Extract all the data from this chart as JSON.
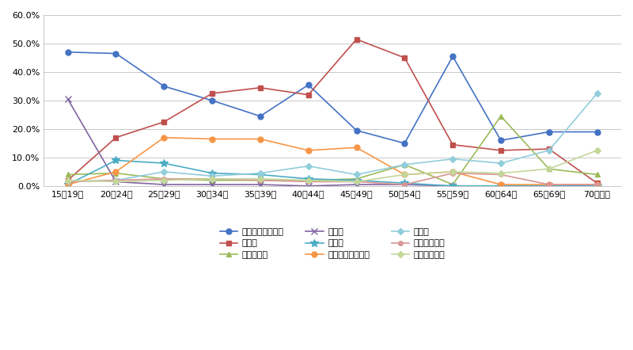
{
  "categories": [
    "15～19歳",
    "20～24歳",
    "25～29歳",
    "30～34歳",
    "35～39歳",
    "40～44歳",
    "45～49歳",
    "50～54歳",
    "55～59歳",
    "60～64歳",
    "65～69歳",
    "70歳以上"
  ],
  "series": [
    {
      "name": "就職・転職・転業",
      "color": "#4472C4",
      "marker": "o",
      "markersize": 5,
      "values": [
        47.0,
        46.5,
        35.0,
        30.0,
        24.5,
        35.5,
        19.5,
        15.0,
        45.5,
        16.0,
        19.0,
        19.0
      ]
    },
    {
      "name": "転　勧",
      "color": "#C0504D",
      "marker": "s",
      "markersize": 5,
      "values": [
        2.0,
        17.0,
        22.5,
        32.5,
        34.5,
        32.0,
        51.5,
        45.0,
        14.5,
        12.5,
        13.0,
        1.0
      ]
    },
    {
      "name": "退職・廃業",
      "color": "#9BBB59",
      "marker": "^",
      "markersize": 5,
      "values": [
        4.0,
        4.5,
        2.5,
        2.0,
        2.0,
        2.0,
        2.5,
        7.5,
        0.5,
        24.5,
        6.0,
        4.0
      ]
    },
    {
      "name": "就　学",
      "color": "#8064A2",
      "marker": "x",
      "markersize": 6,
      "values": [
        30.5,
        1.5,
        0.5,
        0.5,
        0.5,
        0.0,
        0.5,
        0.5,
        0.0,
        0.0,
        0.0,
        0.0
      ]
    },
    {
      "name": "卒　業",
      "color": "#4BACC6",
      "marker": "*",
      "markersize": 7,
      "values": [
        0.5,
        9.0,
        8.0,
        4.5,
        4.0,
        2.5,
        2.0,
        1.0,
        0.0,
        0.0,
        0.0,
        0.0
      ]
    },
    {
      "name": "結婚・離婚・縁組",
      "color": "#F79646",
      "marker": "o",
      "markersize": 5,
      "values": [
        0.5,
        5.0,
        17.0,
        16.5,
        16.5,
        12.5,
        13.5,
        4.0,
        5.0,
        0.5,
        0.5,
        0.5
      ]
    },
    {
      "name": "住　宅",
      "color": "#92CDDC",
      "marker": "D",
      "markersize": 4,
      "values": [
        1.5,
        2.0,
        5.0,
        3.5,
        4.5,
        7.0,
        4.0,
        7.5,
        9.5,
        8.0,
        12.5,
        32.5
      ]
    },
    {
      "name": "交通の利便性",
      "color": "#D99694",
      "marker": "o",
      "markersize": 4,
      "values": [
        1.5,
        2.0,
        2.5,
        2.5,
        2.0,
        1.5,
        1.5,
        0.5,
        4.5,
        4.0,
        0.5,
        0.5
      ]
    },
    {
      "name": "生活の利便性",
      "color": "#C4D79B",
      "marker": "D",
      "markersize": 4,
      "values": [
        2.0,
        1.5,
        2.0,
        2.5,
        2.5,
        2.0,
        1.5,
        4.0,
        5.0,
        4.5,
        6.0,
        12.5
      ]
    }
  ],
  "ylim": [
    0.0,
    60.0
  ],
  "yticks": [
    0.0,
    10.0,
    20.0,
    30.0,
    40.0,
    50.0,
    60.0
  ],
  "background_color": "#FFFFFF",
  "grid_color": "#C0C0C0"
}
